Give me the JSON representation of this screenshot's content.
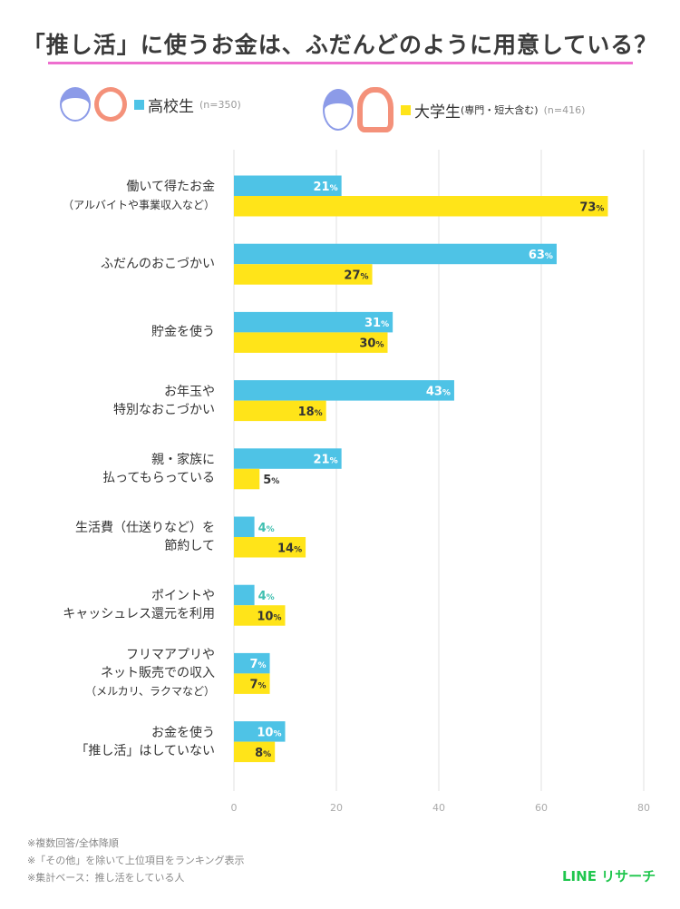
{
  "title": "「推し活」に使うお金は、ふだんどのように用意している？",
  "legend": [
    {
      "label": "高校生",
      "sub": "",
      "n": "(n=350)",
      "color": "#4ec3e6"
    },
    {
      "label": "大学生",
      "sub": "(専門・短大含む)",
      "n": "(n=416)",
      "color": "#ffe419"
    }
  ],
  "chart_data": {
    "type": "bar",
    "orientation": "horizontal",
    "categories": [
      [
        "働いて得たお金",
        "（アルバイトや事業収入など）"
      ],
      [
        "ふだんのおこづかい"
      ],
      [
        "貯金を使う"
      ],
      [
        "お年玉や",
        "特別なおこづかい"
      ],
      [
        "親・家族に",
        "払ってもらっている"
      ],
      [
        "生活費（仕送りなど）を",
        "節約して"
      ],
      [
        "ポイントや",
        "キャッシュレス還元を利用"
      ],
      [
        "フリマアプリや",
        "ネット販売での収入",
        "（メルカリ、ラクマなど）"
      ],
      [
        "お金を使う",
        "「推し活」はしていない"
      ]
    ],
    "series": [
      {
        "name": "高校生",
        "values": [
          21,
          63,
          31,
          43,
          21,
          4,
          4,
          7,
          10
        ]
      },
      {
        "name": "大学生",
        "values": [
          73,
          27,
          30,
          18,
          5,
          14,
          10,
          7,
          8
        ]
      }
    ],
    "xlim": [
      0,
      80
    ],
    "xticks": [
      "0",
      "20",
      "40",
      "60",
      "80"
    ],
    "unit": "%",
    "grid": true
  },
  "notes": [
    "※複数回答/全体降順",
    "※「その他」を除いて上位項目をランキング表示",
    "※集計ベース：推し活をしている人"
  ],
  "logo": "LINE リサーチ"
}
